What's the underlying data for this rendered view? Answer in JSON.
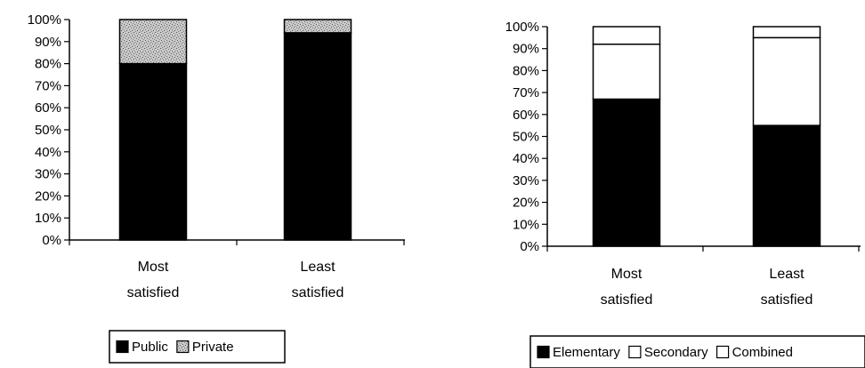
{
  "chart_data": [
    {
      "type": "bar",
      "stacked": true,
      "categories": [
        "Most\nsatisfied",
        "Least\nsatisfied"
      ],
      "ylim": [
        0,
        100
      ],
      "yticks": [
        "0%",
        "10%",
        "20%",
        "30%",
        "40%",
        "50%",
        "60%",
        "70%",
        "80%",
        "90%",
        "100%"
      ],
      "legend_position": "bottom",
      "series": [
        {
          "name": "Public",
          "values": [
            80,
            94
          ],
          "color": "#000000",
          "fill": "solid"
        },
        {
          "name": "Private",
          "values": [
            20,
            6
          ],
          "color": "#b5b5b5",
          "fill": "speckle"
        }
      ]
    },
    {
      "type": "bar",
      "stacked": true,
      "categories": [
        "Most\nsatisfied",
        "Least\nsatisfied"
      ],
      "ylim": [
        0,
        100
      ],
      "yticks": [
        "0%",
        "10%",
        "20%",
        "30%",
        "40%",
        "50%",
        "60%",
        "70%",
        "80%",
        "90%",
        "100%"
      ],
      "legend_position": "bottom",
      "series": [
        {
          "name": "Elementary",
          "values": [
            67,
            55
          ],
          "color": "#000000",
          "fill": "solid"
        },
        {
          "name": "Secondary",
          "values": [
            25,
            40
          ],
          "color": "#ffffff",
          "fill": "solid"
        },
        {
          "name": "Combined",
          "values": [
            8,
            5
          ],
          "color": "#ffffff",
          "fill": "solid"
        }
      ]
    }
  ]
}
